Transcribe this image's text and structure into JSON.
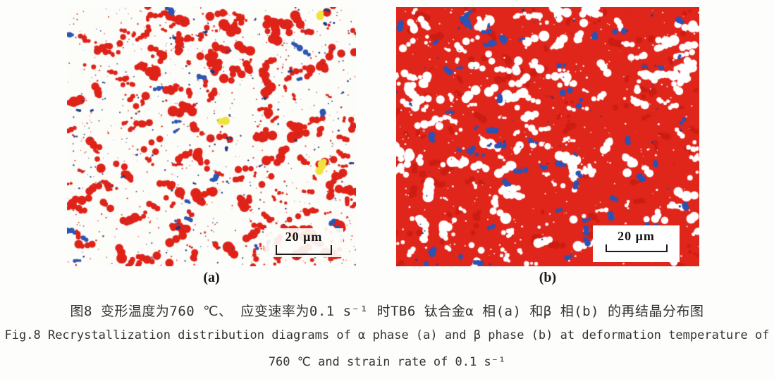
{
  "figure": {
    "panels": [
      {
        "label": "(a)",
        "scale_bar": "20 μm",
        "speckle": {
          "background": "#fcfcf9",
          "layers": [
            {
              "name": "red-grains",
              "color": "#df2318",
              "count": 215,
              "rmin": 2.0,
              "rmax": 7.5,
              "elong": 1.7,
              "parts": 5
            },
            {
              "name": "red-dots",
              "color": "#e0301f",
              "count": 380,
              "rmin": 0.6,
              "rmax": 1.6,
              "elong": 1.0,
              "parts": 1
            },
            {
              "name": "navy-dots",
              "color": "#33427e",
              "count": 330,
              "rmin": 0.6,
              "rmax": 1.5,
              "elong": 1.0,
              "parts": 1
            },
            {
              "name": "blue-grains",
              "color": "#2d55b2",
              "count": 22,
              "rmin": 2.2,
              "rmax": 4.5,
              "elong": 1.2,
              "parts": 4
            },
            {
              "name": "darkblue-grains",
              "color": "#1d3a82",
              "count": 30,
              "rmin": 1.2,
              "rmax": 2.4,
              "elong": 1.0,
              "parts": 2
            },
            {
              "name": "yellow-grains",
              "color": "#efe33c",
              "count": 3,
              "rmin": 5.0,
              "rmax": 7.5,
              "elong": 1.1,
              "parts": 4
            }
          ]
        }
      },
      {
        "label": "(b)",
        "scale_bar": "20 μm",
        "speckle": {
          "background": "#e0251b",
          "layers": [
            {
              "name": "darkred-texture",
              "color": "#cc1d12",
              "count": 90,
              "rmin": 2.0,
              "rmax": 6.0,
              "elong": 1.5,
              "parts": 4
            },
            {
              "name": "white-grains",
              "color": "#ffffff",
              "count": 175,
              "rmin": 2.2,
              "rmax": 7.5,
              "elong": 1.8,
              "parts": 5
            },
            {
              "name": "white-dots",
              "color": "#ffffff",
              "count": 320,
              "rmin": 0.6,
              "rmax": 1.7,
              "elong": 1.0,
              "parts": 1
            },
            {
              "name": "blue-grains",
              "color": "#2b53b4",
              "count": 58,
              "rmin": 2.0,
              "rmax": 5.5,
              "elong": 1.3,
              "parts": 4
            },
            {
              "name": "darkblue-dots",
              "color": "#1d3f94",
              "count": 60,
              "rmin": 0.8,
              "rmax": 1.8,
              "elong": 1.0,
              "parts": 1
            }
          ]
        }
      }
    ],
    "caption_zh": "图8 变形温度为760 ℃、 应变速率为0.1 s⁻¹  时TB6 钛合金α 相(a) 和β 相(b) 的再结晶分布图",
    "caption_en_line1": "Fig.8 Recrystallization distribution diagrams of α phase (a) and β phase (b) at deformation temperature of",
    "caption_en_line2": "760 ℃ and strain rate of 0.1 s⁻¹"
  }
}
